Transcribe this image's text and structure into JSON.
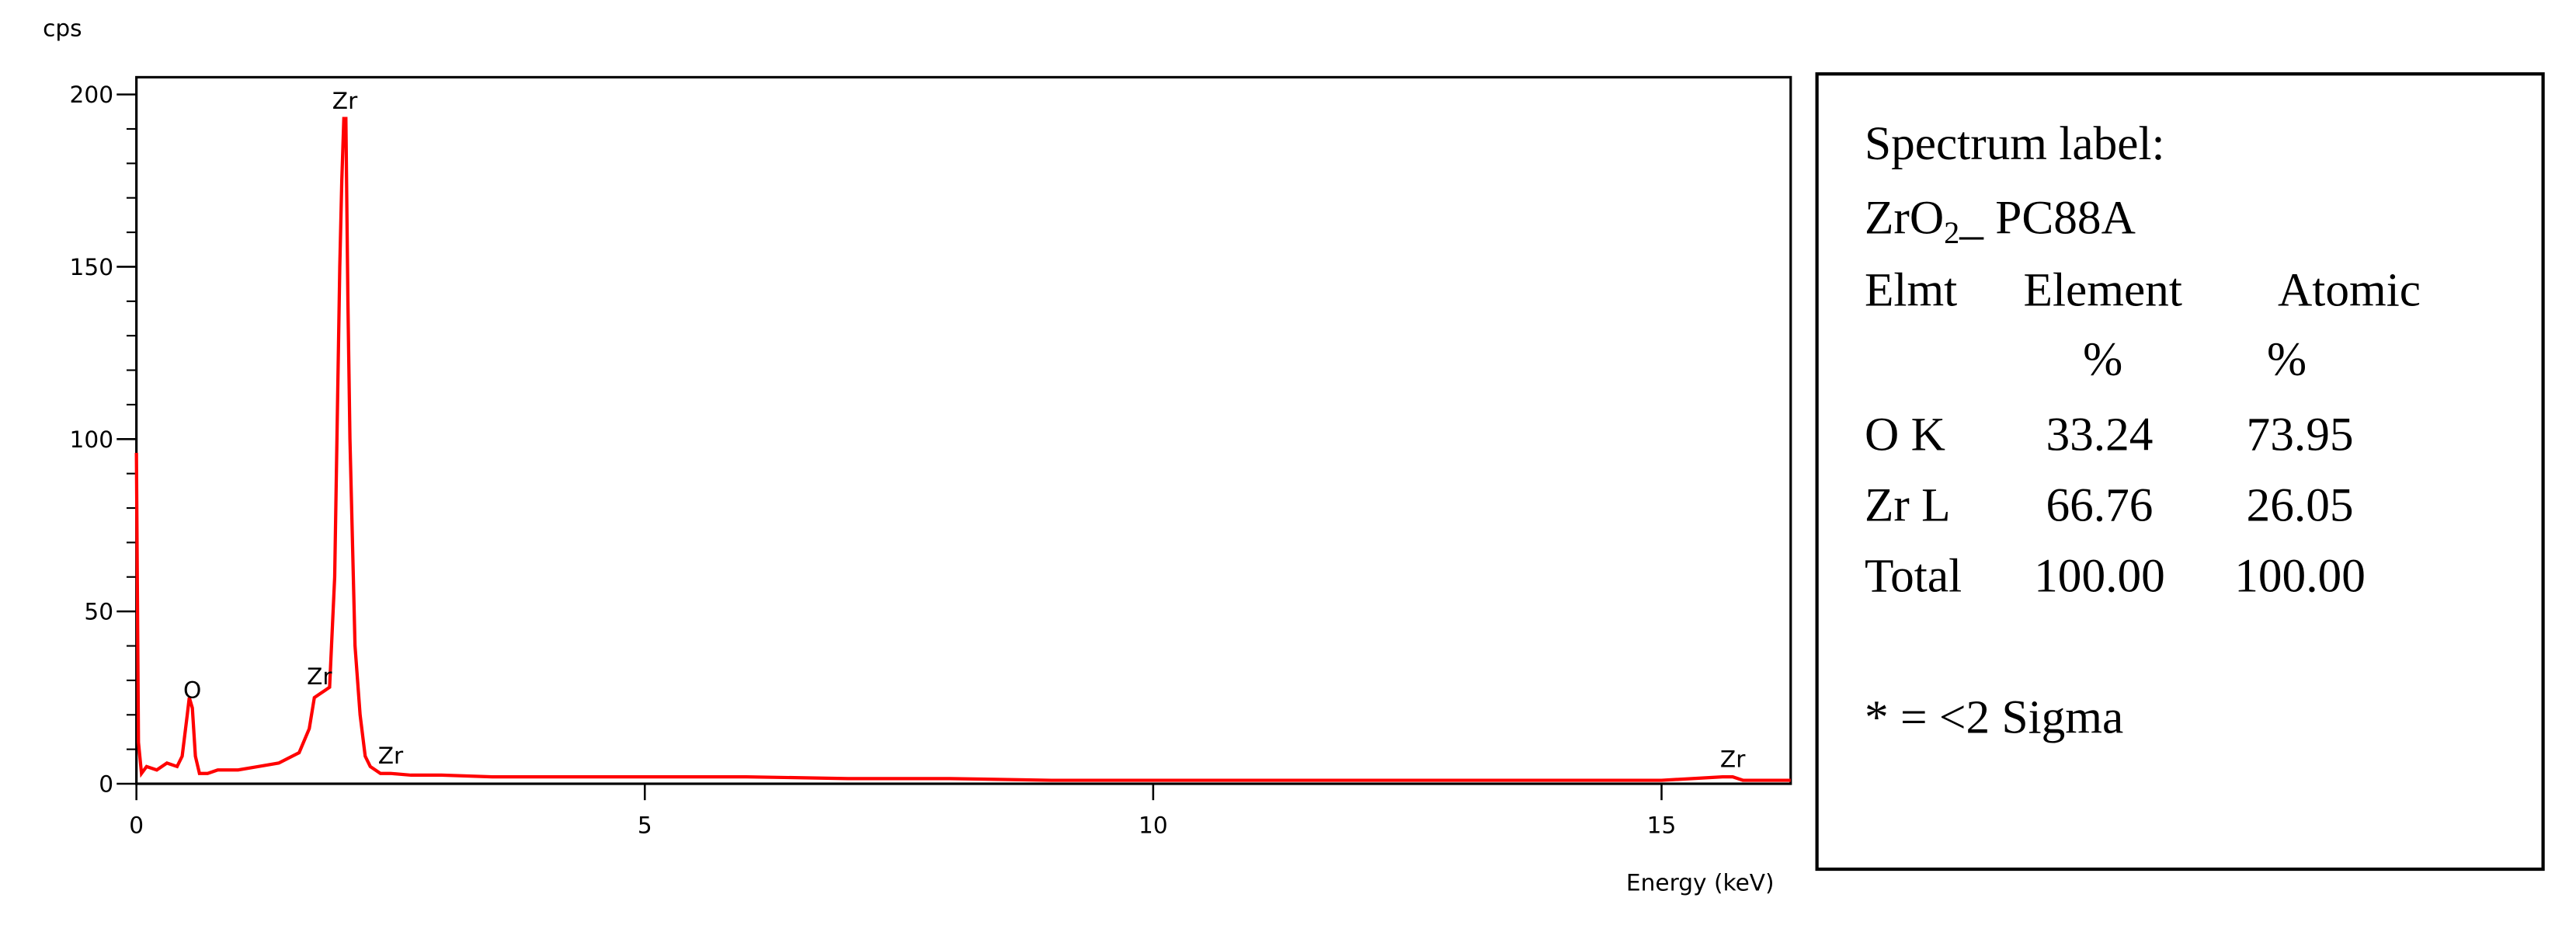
{
  "chart_data": {
    "type": "line",
    "y_label": "cps",
    "x_label": "Energy (keV)",
    "x": [
      0,
      0.02,
      0.05,
      0.1,
      0.2,
      0.3,
      0.4,
      0.45,
      0.5,
      0.52,
      0.55,
      0.58,
      0.62,
      0.7,
      0.8,
      1.0,
      1.2,
      1.4,
      1.6,
      1.7,
      1.75,
      1.8,
      1.85,
      1.9,
      1.95,
      2.0,
      2.02,
      2.04,
      2.06,
      2.08,
      2.1,
      2.15,
      2.2,
      2.25,
      2.3,
      2.4,
      2.5,
      2.7,
      3,
      3.5,
      4,
      5,
      6,
      7,
      8,
      9,
      10,
      11,
      12,
      13,
      14,
      15,
      15.6,
      15.7,
      15.8,
      16,
      16.27
    ],
    "series": [
      {
        "color": "#ff0000",
        "values": [
          96,
          12,
          3,
          5,
          4,
          6,
          5,
          8,
          20,
          25,
          22,
          8,
          3,
          3,
          4,
          4,
          5,
          6,
          9,
          16,
          25,
          26,
          27,
          28,
          60,
          150,
          175,
          193,
          193,
          140,
          100,
          40,
          20,
          8,
          5,
          3,
          3,
          2.5,
          2.5,
          2,
          2,
          2,
          2,
          1.5,
          1.5,
          1,
          1,
          1,
          1,
          1,
          1,
          1,
          2,
          2,
          1,
          1,
          1
        ]
      }
    ],
    "xlim": [
      0,
      16.27
    ],
    "xticks": [
      0,
      5,
      10,
      15
    ],
    "ylim": [
      0,
      205
    ],
    "yticks": [
      0,
      50,
      100,
      150,
      200
    ],
    "yminorticks": [
      10,
      20,
      30,
      40,
      60,
      70,
      80,
      90,
      110,
      120,
      130,
      140,
      160,
      170,
      180,
      190
    ],
    "annotations": [
      {
        "text": "O",
        "x": 0.55
      },
      {
        "text": "Zr",
        "x": 2.05
      },
      {
        "text": "Zr",
        "x": 1.8
      },
      {
        "text": "Zr",
        "x": 2.5
      },
      {
        "text": "Zr",
        "x": 15.7
      }
    ]
  },
  "info_box": {
    "title": "Spectrum label:",
    "sample": [
      "ZrO",
      "2",
      "_  PC88A"
    ],
    "columns": [
      "Elmt",
      "Element",
      "Atomic"
    ],
    "units": [
      "%",
      "%"
    ],
    "rows": [
      [
        "O  K",
        "33.24",
        "73.95"
      ],
      [
        "Zr L",
        "66.76",
        "26.05"
      ],
      [
        "Total",
        "100.00",
        "100.00"
      ]
    ],
    "note": "* = <2 Sigma"
  }
}
